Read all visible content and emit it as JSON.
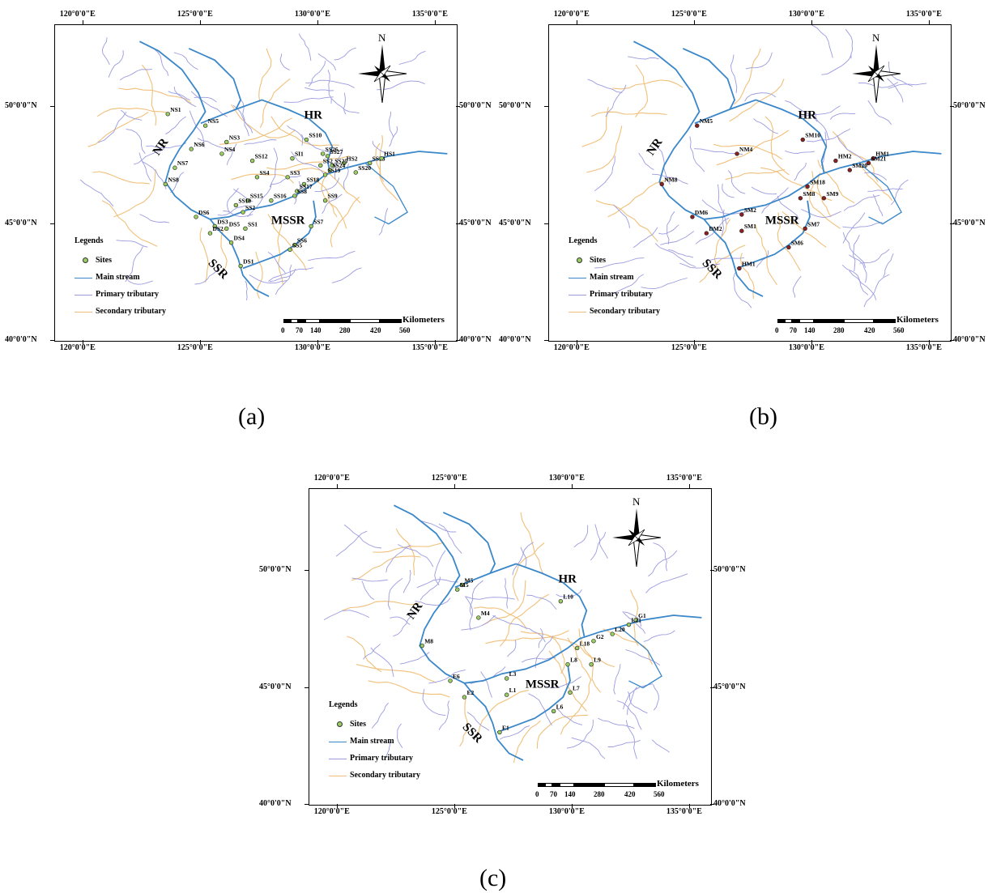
{
  "colors": {
    "main_stream": "#3a87c9",
    "primary_tributary": "#9b9be0",
    "secondary_tributary": "#f0c07a",
    "site_fill": "#9acd62",
    "site_fill_dark": "#8b2020"
  },
  "coords": {
    "lon": [
      "120°0'0\"E",
      "125°0'0\"E",
      "130°0'0\"E",
      "135°0'0\"E"
    ],
    "lat": [
      "50°0'0\"N",
      "45°0'0\"N",
      "40°0'0\"N"
    ]
  },
  "compass": {
    "north": "N"
  },
  "legend": {
    "title": "Legends",
    "sites": "Sites",
    "main_stream": "Main stream",
    "primary": "Primary tributary",
    "secondary": "Secondary tributary"
  },
  "scale": {
    "ticks": [
      "0",
      "70",
      "140",
      "280",
      "420",
      "560"
    ],
    "unit": "Kilometers"
  },
  "rivers": {
    "HR": "HR",
    "NR": "NR",
    "MSSR": "MSSR",
    "SSR": "SSR"
  },
  "panels": [
    {
      "caption": "(a)",
      "site_style": "light",
      "sites": [
        {
          "label": "NS1",
          "lon": 123.6,
          "lat": 49.7
        },
        {
          "label": "NS5",
          "lon": 125.2,
          "lat": 49.2
        },
        {
          "label": "NS3",
          "lon": 126.1,
          "lat": 48.5
        },
        {
          "label": "NS6",
          "lon": 124.6,
          "lat": 48.2
        },
        {
          "label": "NS4",
          "lon": 125.9,
          "lat": 48.0
        },
        {
          "label": "NS7",
          "lon": 123.9,
          "lat": 47.4
        },
        {
          "label": "NS8",
          "lon": 123.5,
          "lat": 46.7
        },
        {
          "label": "SS12",
          "lon": 127.2,
          "lat": 47.7
        },
        {
          "label": "SS4",
          "lon": 127.4,
          "lat": 47.0
        },
        {
          "label": "SI1",
          "lon": 128.9,
          "lat": 47.8
        },
        {
          "label": "SS3",
          "lon": 128.7,
          "lat": 47.0
        },
        {
          "label": "SS10",
          "lon": 129.5,
          "lat": 48.6
        },
        {
          "label": "SS26",
          "lon": 130.2,
          "lat": 48.0
        },
        {
          "label": "SS27",
          "lon": 130.4,
          "lat": 47.9
        },
        {
          "label": "HS2",
          "lon": 131.1,
          "lat": 47.6
        },
        {
          "label": "SS28",
          "lon": 132.2,
          "lat": 47.6
        },
        {
          "label": "HS1",
          "lon": 132.7,
          "lat": 47.8
        },
        {
          "label": "SS25",
          "lon": 130.6,
          "lat": 47.5
        },
        {
          "label": "SS24",
          "lon": 130.5,
          "lat": 47.3
        },
        {
          "label": "SS19",
          "lon": 130.3,
          "lat": 47.1
        },
        {
          "label": "SS20",
          "lon": 131.6,
          "lat": 47.2
        },
        {
          "label": "SS2",
          "lon": 130.1,
          "lat": 47.5
        },
        {
          "label": "SS18",
          "lon": 129.4,
          "lat": 46.7
        },
        {
          "label": "SS17",
          "lon": 129.1,
          "lat": 46.4
        },
        {
          "label": "SS8",
          "lon": 129.0,
          "lat": 46.2
        },
        {
          "label": "SS9",
          "lon": 130.3,
          "lat": 46.0
        },
        {
          "label": "SS16",
          "lon": 128.0,
          "lat": 46.0
        },
        {
          "label": "SS15",
          "lon": 127.0,
          "lat": 46.0
        },
        {
          "label": "SS10",
          "lon": 126.5,
          "lat": 45.8
        },
        {
          "label": "SS2",
          "lon": 126.8,
          "lat": 45.5
        },
        {
          "label": "DS6",
          "lon": 124.8,
          "lat": 45.3
        },
        {
          "label": "DS3",
          "lon": 125.6,
          "lat": 44.9
        },
        {
          "label": "DS5",
          "lon": 126.1,
          "lat": 44.8
        },
        {
          "label": "SS1",
          "lon": 126.9,
          "lat": 44.8
        },
        {
          "label": "DS2",
          "lon": 125.4,
          "lat": 44.6
        },
        {
          "label": "DS4",
          "lon": 126.3,
          "lat": 44.2
        },
        {
          "label": "SS7",
          "lon": 129.7,
          "lat": 44.9
        },
        {
          "label": "SS6",
          "lon": 129.0,
          "lat": 44.1
        },
        {
          "label": "SS5",
          "lon": 128.8,
          "lat": 43.9
        },
        {
          "label": "DS1",
          "lon": 126.7,
          "lat": 43.2
        }
      ]
    },
    {
      "caption": "(b)",
      "site_style": "dark",
      "sites": [
        {
          "label": "NM5",
          "lon": 125.1,
          "lat": 49.2
        },
        {
          "label": "NM4",
          "lon": 126.8,
          "lat": 48.0
        },
        {
          "label": "NM8",
          "lon": 123.6,
          "lat": 46.7
        },
        {
          "label": "SM10",
          "lon": 129.6,
          "lat": 48.6
        },
        {
          "label": "HM2",
          "lon": 131.0,
          "lat": 47.7
        },
        {
          "label": "HM1",
          "lon": 132.6,
          "lat": 47.8
        },
        {
          "label": "SM21",
          "lon": 132.4,
          "lat": 47.6
        },
        {
          "label": "SM20",
          "lon": 131.6,
          "lat": 47.3
        },
        {
          "label": "SM18",
          "lon": 129.8,
          "lat": 46.6
        },
        {
          "label": "SM8",
          "lon": 129.5,
          "lat": 46.1
        },
        {
          "label": "SM9",
          "lon": 130.5,
          "lat": 46.1
        },
        {
          "label": "SM2",
          "lon": 127.0,
          "lat": 45.4
        },
        {
          "label": "DM6",
          "lon": 124.9,
          "lat": 45.3
        },
        {
          "label": "SM1",
          "lon": 127.0,
          "lat": 44.7
        },
        {
          "label": "DM2",
          "lon": 125.5,
          "lat": 44.6
        },
        {
          "label": "SM7",
          "lon": 129.7,
          "lat": 44.8
        },
        {
          "label": "SM6",
          "lon": 129.0,
          "lat": 44.0
        },
        {
          "label": "HM1",
          "lon": 126.9,
          "lat": 43.1
        }
      ]
    },
    {
      "caption": "(c)",
      "site_style": "light",
      "sites": [
        {
          "label": "M5",
          "lon": 125.3,
          "lat": 49.4
        },
        {
          "label": "M5",
          "lon": 125.1,
          "lat": 49.2
        },
        {
          "label": "L10",
          "lon": 129.5,
          "lat": 48.7
        },
        {
          "label": "M4",
          "lon": 126.0,
          "lat": 48.0
        },
        {
          "label": "G1",
          "lon": 132.7,
          "lat": 47.9
        },
        {
          "label": "L21",
          "lon": 132.4,
          "lat": 47.7
        },
        {
          "label": "L20",
          "lon": 131.7,
          "lat": 47.3
        },
        {
          "label": "G2",
          "lon": 130.9,
          "lat": 47.0
        },
        {
          "label": "L18",
          "lon": 130.2,
          "lat": 46.7
        },
        {
          "label": "L8",
          "lon": 129.8,
          "lat": 46.0
        },
        {
          "label": "L9",
          "lon": 130.8,
          "lat": 46.0
        },
        {
          "label": "M8",
          "lon": 123.6,
          "lat": 46.8
        },
        {
          "label": "L3",
          "lon": 127.2,
          "lat": 45.4
        },
        {
          "label": "E6",
          "lon": 124.8,
          "lat": 45.3
        },
        {
          "label": "L1",
          "lon": 127.2,
          "lat": 44.7
        },
        {
          "label": "E2",
          "lon": 125.4,
          "lat": 44.6
        },
        {
          "label": "L7",
          "lon": 129.9,
          "lat": 44.8
        },
        {
          "label": "L6",
          "lon": 129.2,
          "lat": 44.0
        },
        {
          "label": "E1",
          "lon": 126.9,
          "lat": 43.1
        }
      ]
    }
  ]
}
